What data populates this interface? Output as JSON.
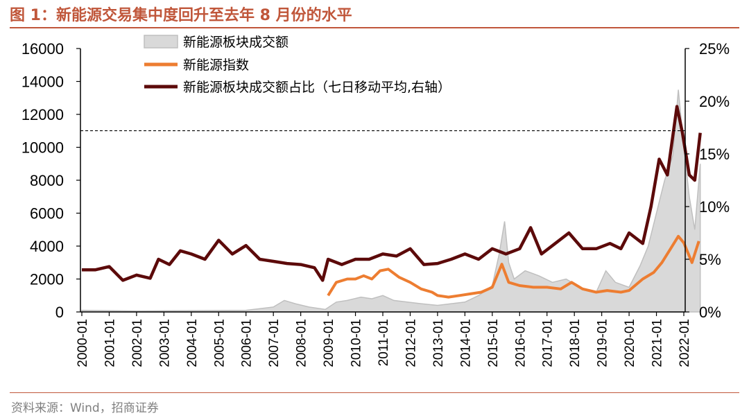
{
  "figure": {
    "title": "图 1：新能源交易集中度回升至去年 8 月份的水平",
    "source": "资料来源：Wind，招商证券"
  },
  "chart_data": {
    "type": "area",
    "x_tick_labels": [
      "2000-01",
      "2001-01",
      "2002-01",
      "2003-01",
      "2004-01",
      "2005-01",
      "2006-01",
      "2007-01",
      "2008-01",
      "2009-01",
      "2010-01",
      "2011-01",
      "2012-01",
      "2013-01",
      "2014-01",
      "2015-01",
      "2016-01",
      "2017-01",
      "2018-01",
      "2019-01",
      "2020-01",
      "2021-01",
      "2022-01"
    ],
    "y_left": {
      "ticks": [
        "0",
        "2000",
        "4000",
        "6000",
        "8000",
        "10000",
        "12000",
        "14000",
        "16000"
      ],
      "range": [
        0,
        16000
      ]
    },
    "y_right": {
      "ticks": [
        "0%",
        "5%",
        "10%",
        "15%",
        "20%",
        "25%"
      ],
      "range": [
        0,
        25
      ]
    },
    "reference_line": {
      "value_right_axis": 17.2,
      "style": "dashed"
    },
    "series": [
      {
        "name": "新能源板块成交额",
        "axis": "left",
        "kind": "area",
        "color": "#bfbfbf",
        "fill": "#d9d9d9",
        "points": [
          [
            2000.0,
            100
          ],
          [
            2002.0,
            60
          ],
          [
            2004.0,
            80
          ],
          [
            2006.0,
            100
          ],
          [
            2007.0,
            300
          ],
          [
            2007.4,
            700
          ],
          [
            2007.8,
            500
          ],
          [
            2008.3,
            300
          ],
          [
            2008.9,
            150
          ],
          [
            2009.3,
            600
          ],
          [
            2009.7,
            700
          ],
          [
            2010.2,
            900
          ],
          [
            2010.6,
            800
          ],
          [
            2011.0,
            1000
          ],
          [
            2011.4,
            700
          ],
          [
            2011.9,
            600
          ],
          [
            2012.4,
            500
          ],
          [
            2013.0,
            400
          ],
          [
            2013.5,
            500
          ],
          [
            2014.0,
            600
          ],
          [
            2014.5,
            1000
          ],
          [
            2015.0,
            1600
          ],
          [
            2015.25,
            3500
          ],
          [
            2015.45,
            5500
          ],
          [
            2015.6,
            3000
          ],
          [
            2015.8,
            2000
          ],
          [
            2016.2,
            2500
          ],
          [
            2016.7,
            2200
          ],
          [
            2017.2,
            1800
          ],
          [
            2017.7,
            2000
          ],
          [
            2018.2,
            1500
          ],
          [
            2018.8,
            1200
          ],
          [
            2019.15,
            2500
          ],
          [
            2019.5,
            1800
          ],
          [
            2020.0,
            1500
          ],
          [
            2020.4,
            2800
          ],
          [
            2020.7,
            4000
          ],
          [
            2021.0,
            6000
          ],
          [
            2021.3,
            8000
          ],
          [
            2021.6,
            9500
          ],
          [
            2021.8,
            13500
          ],
          [
            2022.0,
            10000
          ],
          [
            2022.2,
            7000
          ],
          [
            2022.4,
            5000
          ],
          [
            2022.6,
            9000
          ]
        ]
      },
      {
        "name": "新能源指数",
        "axis": "left",
        "kind": "line",
        "color": "#ed7d31",
        "points": [
          [
            2009.0,
            1000
          ],
          [
            2009.3,
            1800
          ],
          [
            2009.7,
            2000
          ],
          [
            2010.0,
            2000
          ],
          [
            2010.3,
            2200
          ],
          [
            2010.6,
            2000
          ],
          [
            2010.9,
            2500
          ],
          [
            2011.2,
            2600
          ],
          [
            2011.6,
            2100
          ],
          [
            2012.0,
            1800
          ],
          [
            2012.4,
            1400
          ],
          [
            2012.8,
            1200
          ],
          [
            2013.0,
            1000
          ],
          [
            2013.4,
            900
          ],
          [
            2013.8,
            1000
          ],
          [
            2014.2,
            1100
          ],
          [
            2014.6,
            1200
          ],
          [
            2015.0,
            1500
          ],
          [
            2015.35,
            2900
          ],
          [
            2015.6,
            1800
          ],
          [
            2016.0,
            1600
          ],
          [
            2016.5,
            1500
          ],
          [
            2017.0,
            1500
          ],
          [
            2017.5,
            1400
          ],
          [
            2017.9,
            1800
          ],
          [
            2018.3,
            1400
          ],
          [
            2018.8,
            1200
          ],
          [
            2019.2,
            1300
          ],
          [
            2019.7,
            1200
          ],
          [
            2020.0,
            1300
          ],
          [
            2020.5,
            2000
          ],
          [
            2020.9,
            2400
          ],
          [
            2021.2,
            3000
          ],
          [
            2021.5,
            3800
          ],
          [
            2021.8,
            4600
          ],
          [
            2022.0,
            4200
          ],
          [
            2022.3,
            3000
          ],
          [
            2022.55,
            4300
          ]
        ]
      },
      {
        "name": "新能源板块成交额占比（七日移动平均,右轴）",
        "axis": "right",
        "kind": "line",
        "color": "#5c0a0a",
        "points": [
          [
            2000.0,
            4.0
          ],
          [
            2000.5,
            4.0
          ],
          [
            2001.0,
            4.3
          ],
          [
            2001.5,
            3.0
          ],
          [
            2002.0,
            3.5
          ],
          [
            2002.5,
            3.2
          ],
          [
            2002.8,
            5.0
          ],
          [
            2003.2,
            4.5
          ],
          [
            2003.6,
            5.8
          ],
          [
            2004.0,
            5.5
          ],
          [
            2004.5,
            5.0
          ],
          [
            2005.0,
            6.8
          ],
          [
            2005.5,
            5.5
          ],
          [
            2006.0,
            6.3
          ],
          [
            2006.5,
            5.0
          ],
          [
            2007.0,
            4.8
          ],
          [
            2007.5,
            4.6
          ],
          [
            2008.0,
            4.5
          ],
          [
            2008.5,
            4.2
          ],
          [
            2008.8,
            3.0
          ],
          [
            2009.0,
            5.0
          ],
          [
            2009.5,
            4.5
          ],
          [
            2010.0,
            5.0
          ],
          [
            2010.5,
            5.0
          ],
          [
            2011.0,
            5.5
          ],
          [
            2011.5,
            5.3
          ],
          [
            2012.0,
            6.0
          ],
          [
            2012.5,
            4.5
          ],
          [
            2013.0,
            4.6
          ],
          [
            2013.5,
            5.0
          ],
          [
            2014.0,
            5.5
          ],
          [
            2014.5,
            5.0
          ],
          [
            2015.0,
            6.0
          ],
          [
            2015.5,
            5.5
          ],
          [
            2016.0,
            6.0
          ],
          [
            2016.4,
            8.0
          ],
          [
            2016.8,
            5.5
          ],
          [
            2017.3,
            6.5
          ],
          [
            2017.8,
            7.5
          ],
          [
            2018.3,
            6.0
          ],
          [
            2018.8,
            6.0
          ],
          [
            2019.3,
            6.5
          ],
          [
            2019.7,
            6.0
          ],
          [
            2020.0,
            7.5
          ],
          [
            2020.5,
            6.5
          ],
          [
            2020.8,
            10.0
          ],
          [
            2021.1,
            14.5
          ],
          [
            2021.4,
            13.0
          ],
          [
            2021.75,
            19.5
          ],
          [
            2021.95,
            17.0
          ],
          [
            2022.2,
            13.0
          ],
          [
            2022.4,
            12.5
          ],
          [
            2022.6,
            17.0
          ]
        ]
      }
    ],
    "legend_placement": "top-left"
  }
}
